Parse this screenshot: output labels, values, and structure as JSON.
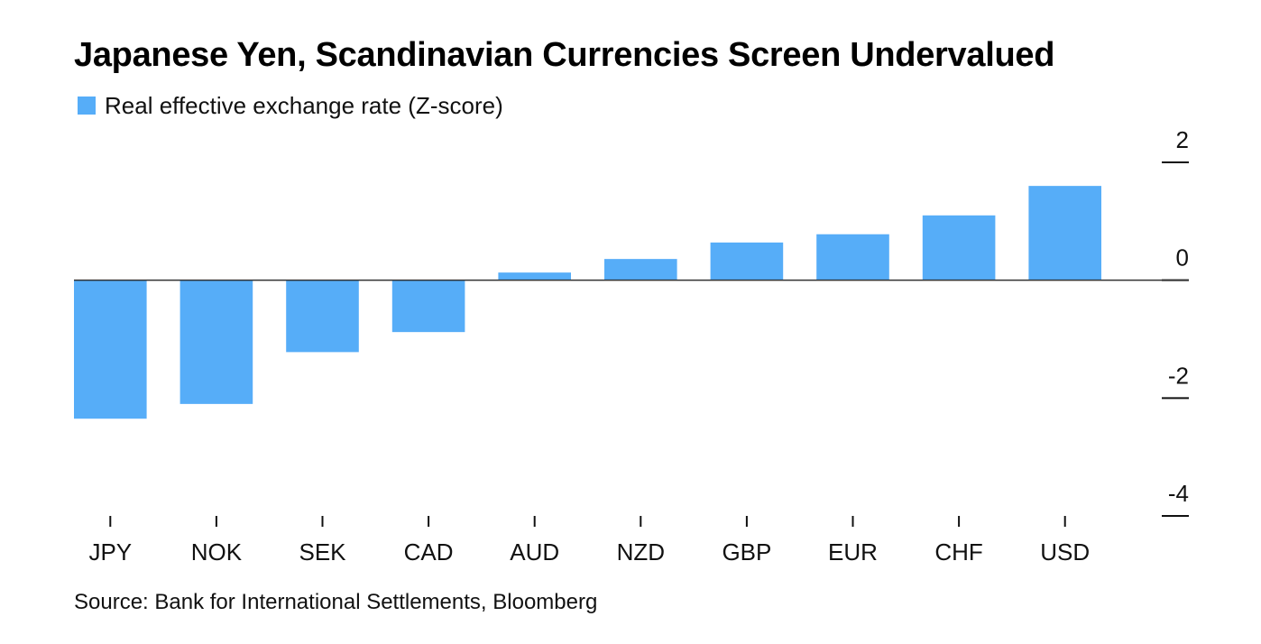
{
  "chart_data": {
    "type": "bar",
    "title": "Japanese Yen, Scandinavian Currencies Screen Undervalued",
    "legend_position": "top-left",
    "categories": [
      "JPY",
      "NOK",
      "SEK",
      "CAD",
      "AUD",
      "NZD",
      "GBP",
      "EUR",
      "CHF",
      "USD"
    ],
    "series": [
      {
        "name": "Real effective exchange rate (Z-score)",
        "color": "#56adf8",
        "values": [
          -2.35,
          -2.1,
          -1.22,
          -0.88,
          0.13,
          0.36,
          0.64,
          0.78,
          1.1,
          1.6
        ]
      }
    ],
    "ylim": [
      -4,
      2
    ],
    "yticks": [
      2,
      0,
      -2,
      -4
    ],
    "ytick_labels": [
      "2",
      "0",
      "-2",
      "-4"
    ],
    "y_axis_side": "right",
    "grid": false,
    "zero_line": true,
    "source": "Source: Bank for International Settlements, Bloomberg"
  }
}
